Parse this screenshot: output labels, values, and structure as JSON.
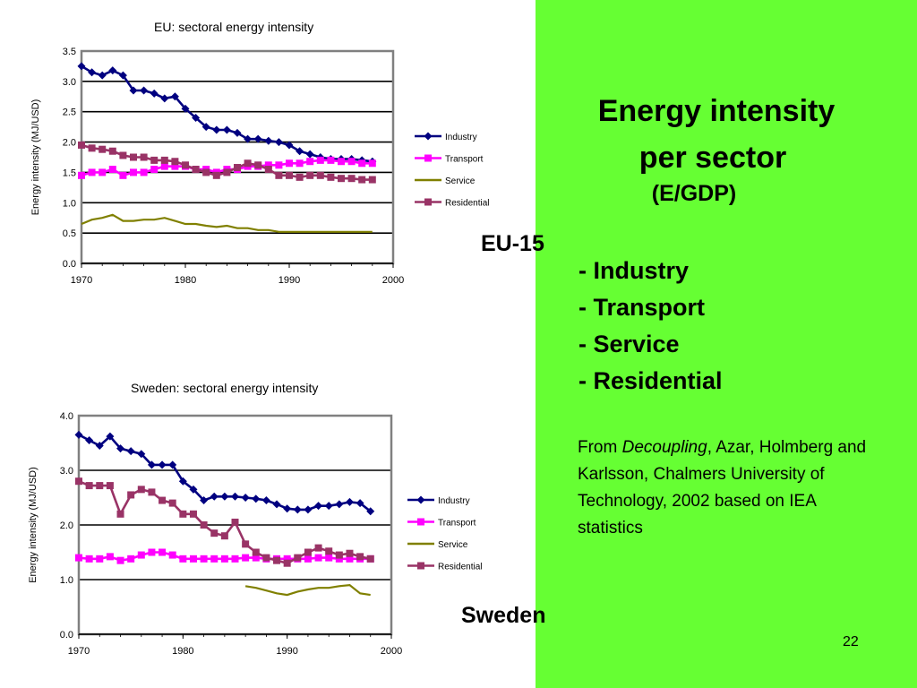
{
  "colors": {
    "panel": "#66ff33",
    "industry": "#000080",
    "transport": "#ff00ff",
    "service": "#808000",
    "residential": "#993366"
  },
  "slide": {
    "heading_line1": "Energy intensity",
    "heading_line2": "per sector",
    "subheading": "(E/GDP)",
    "bullets": [
      "- Industry",
      "- Transport",
      "- Service",
      "- Residential"
    ],
    "source_prefix": "From ",
    "source_italic": "Decoupling",
    "source_rest": ", Azar, Holmberg and Karlsson, Chalmers University of Technology, 2002 based on IEA statistics",
    "label_eu": "EU-15",
    "label_sweden": "Sweden",
    "page_number": "22"
  },
  "chart_data": [
    {
      "type": "line",
      "title": "EU: sectoral energy intensity",
      "ylabel": "Energy intensity (MJ/USD)",
      "xlabel": "",
      "xlim": [
        1970,
        2000
      ],
      "ylim": [
        0,
        3.5
      ],
      "x_ticks": [
        "1970",
        "1980",
        "1990",
        "2000"
      ],
      "y_ticks": [
        "0.0",
        "0.5",
        "1.0",
        "1.5",
        "2.0",
        "2.5",
        "3.0",
        "3.5"
      ],
      "grid": true,
      "legend": "right",
      "x": [
        1970,
        1971,
        1972,
        1973,
        1974,
        1975,
        1976,
        1977,
        1978,
        1979,
        1980,
        1981,
        1982,
        1983,
        1984,
        1985,
        1986,
        1987,
        1988,
        1989,
        1990,
        1991,
        1992,
        1993,
        1994,
        1995,
        1996,
        1997,
        1998
      ],
      "series": [
        {
          "name": "Industry",
          "color": "#000080",
          "marker": "diamond",
          "values": [
            3.25,
            3.15,
            3.1,
            3.18,
            3.1,
            2.85,
            2.85,
            2.8,
            2.72,
            2.75,
            2.55,
            2.4,
            2.25,
            2.2,
            2.2,
            2.15,
            2.05,
            2.05,
            2.02,
            2.0,
            1.95,
            1.85,
            1.8,
            1.75,
            1.72,
            1.72,
            1.72,
            1.7,
            1.68
          ]
        },
        {
          "name": "Transport",
          "color": "#ff00ff",
          "marker": "square",
          "values": [
            1.45,
            1.5,
            1.5,
            1.55,
            1.45,
            1.5,
            1.5,
            1.55,
            1.6,
            1.6,
            1.6,
            1.55,
            1.55,
            1.5,
            1.55,
            1.55,
            1.6,
            1.6,
            1.62,
            1.62,
            1.65,
            1.65,
            1.68,
            1.7,
            1.7,
            1.68,
            1.68,
            1.65,
            1.65
          ]
        },
        {
          "name": "Service",
          "color": "#808000",
          "marker": "none",
          "values": [
            0.65,
            0.72,
            0.75,
            0.8,
            0.7,
            0.7,
            0.72,
            0.72,
            0.75,
            0.7,
            0.65,
            0.65,
            0.62,
            0.6,
            0.62,
            0.58,
            0.58,
            0.55,
            0.55,
            0.52,
            0.52,
            0.52,
            0.52,
            0.52,
            0.52,
            0.52,
            0.52,
            0.52,
            0.52
          ]
        },
        {
          "name": "Residential",
          "color": "#993366",
          "marker": "square",
          "values": [
            1.95,
            1.9,
            1.88,
            1.85,
            1.78,
            1.75,
            1.75,
            1.7,
            1.7,
            1.68,
            1.62,
            1.55,
            1.5,
            1.45,
            1.5,
            1.58,
            1.65,
            1.62,
            1.55,
            1.45,
            1.45,
            1.42,
            1.45,
            1.45,
            1.42,
            1.4,
            1.4,
            1.38,
            1.38
          ]
        }
      ]
    },
    {
      "type": "line",
      "title": "Sweden: sectoral energy intensity",
      "ylabel": "Energy intensity (MJ/USD)",
      "xlabel": "",
      "xlim": [
        1970,
        2000
      ],
      "ylim": [
        0,
        4
      ],
      "x_ticks": [
        "1970",
        "1980",
        "1990",
        "2000"
      ],
      "y_ticks": [
        "0.0",
        "1.0",
        "2.0",
        "3.0",
        "4.0"
      ],
      "grid": true,
      "legend": "right",
      "x": [
        1970,
        1971,
        1972,
        1973,
        1974,
        1975,
        1976,
        1977,
        1978,
        1979,
        1980,
        1981,
        1982,
        1983,
        1984,
        1985,
        1986,
        1987,
        1988,
        1989,
        1990,
        1991,
        1992,
        1993,
        1994,
        1995,
        1996,
        1997,
        1998
      ],
      "series": [
        {
          "name": "Industry",
          "color": "#000080",
          "marker": "diamond",
          "values": [
            3.65,
            3.55,
            3.45,
            3.62,
            3.4,
            3.35,
            3.3,
            3.1,
            3.1,
            3.1,
            2.8,
            2.65,
            2.45,
            2.52,
            2.52,
            2.52,
            2.5,
            2.48,
            2.45,
            2.38,
            2.3,
            2.28,
            2.28,
            2.35,
            2.35,
            2.38,
            2.42,
            2.4,
            2.25
          ]
        },
        {
          "name": "Transport",
          "color": "#ff00ff",
          "marker": "square",
          "values": [
            1.4,
            1.38,
            1.38,
            1.42,
            1.35,
            1.38,
            1.45,
            1.5,
            1.5,
            1.45,
            1.38,
            1.38,
            1.38,
            1.38,
            1.38,
            1.38,
            1.4,
            1.4,
            1.38,
            1.38,
            1.38,
            1.38,
            1.38,
            1.4,
            1.4,
            1.38,
            1.38,
            1.38,
            1.38
          ]
        },
        {
          "name": "Service",
          "color": "#808000",
          "marker": "none",
          "values": [
            null,
            null,
            null,
            null,
            null,
            null,
            null,
            null,
            null,
            null,
            null,
            null,
            null,
            null,
            null,
            null,
            0.88,
            0.85,
            0.8,
            0.75,
            0.72,
            0.78,
            0.82,
            0.85,
            0.85,
            0.88,
            0.9,
            0.75,
            0.72
          ]
        },
        {
          "name": "Residential",
          "color": "#993366",
          "marker": "square",
          "values": [
            2.8,
            2.72,
            2.72,
            2.72,
            2.2,
            2.55,
            2.65,
            2.6,
            2.45,
            2.4,
            2.2,
            2.2,
            2.0,
            1.85,
            1.8,
            2.05,
            1.65,
            1.5,
            1.4,
            1.35,
            1.3,
            1.4,
            1.5,
            1.58,
            1.52,
            1.45,
            1.48,
            1.42,
            1.38
          ]
        }
      ]
    }
  ]
}
